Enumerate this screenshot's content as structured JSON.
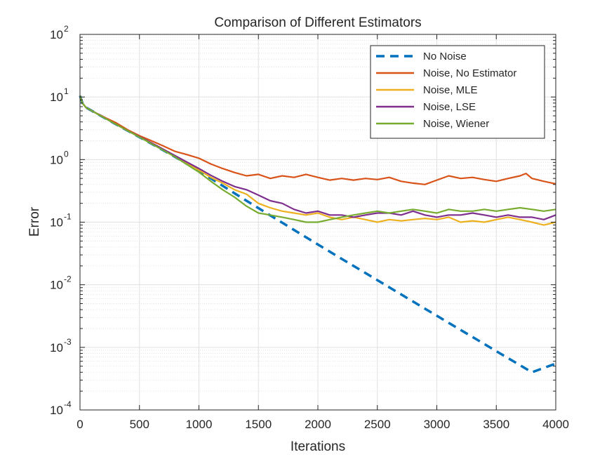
{
  "chart_data": {
    "type": "line",
    "title": "Comparison of Different Estimators",
    "xlabel": "Iterations",
    "ylabel": "Error",
    "xlim": [
      0,
      4000
    ],
    "ylim": [
      0.0001,
      100
    ],
    "yscale": "log",
    "grid": true,
    "minor_grid": true,
    "legend_position": "top-right",
    "x_ticks": [
      {
        "value": 0,
        "label": "0"
      },
      {
        "value": 500,
        "label": "500"
      },
      {
        "value": 1000,
        "label": "1000"
      },
      {
        "value": 1500,
        "label": "1500"
      },
      {
        "value": 2000,
        "label": "2000"
      },
      {
        "value": 2500,
        "label": "2500"
      },
      {
        "value": 3000,
        "label": "3000"
      },
      {
        "value": 3500,
        "label": "3500"
      },
      {
        "value": 4000,
        "label": "4000"
      }
    ],
    "y_ticks": [
      {
        "value": 0.0001,
        "base": "10",
        "exp": "-4"
      },
      {
        "value": 0.001,
        "base": "10",
        "exp": "-3"
      },
      {
        "value": 0.01,
        "base": "10",
        "exp": "-2"
      },
      {
        "value": 0.1,
        "base": "10",
        "exp": "-1"
      },
      {
        "value": 1,
        "base": "10",
        "exp": "0"
      },
      {
        "value": 10,
        "base": "10",
        "exp": "1"
      },
      {
        "value": 100,
        "base": "10",
        "exp": "2"
      }
    ],
    "series": [
      {
        "name": "No Noise",
        "color": "#0072BD",
        "style": "dashed",
        "x": [
          0,
          20,
          50,
          100,
          200,
          400,
          600,
          800,
          1000,
          1200,
          1400,
          1600,
          1800,
          2000,
          2200,
          2400,
          2600,
          2800,
          3000,
          3200,
          3400,
          3600,
          3800,
          4000
        ],
        "y": [
          10.5,
          8.0,
          6.8,
          6.0,
          4.7,
          2.9,
          1.8,
          1.1,
          0.66,
          0.38,
          0.22,
          0.128,
          0.075,
          0.044,
          0.026,
          0.0154,
          0.0091,
          0.0054,
          0.0032,
          0.0019,
          0.00113,
          0.00067,
          0.0004,
          0.00055
        ]
      },
      {
        "name": "Noise, No Estimator",
        "color": "#D95319",
        "style": "solid",
        "x": [
          0,
          20,
          50,
          100,
          200,
          300,
          400,
          500,
          600,
          700,
          800,
          900,
          1000,
          1100,
          1200,
          1300,
          1400,
          1500,
          1600,
          1700,
          1800,
          1900,
          2000,
          2100,
          2200,
          2300,
          2400,
          2500,
          2600,
          2700,
          2800,
          2900,
          3000,
          3100,
          3200,
          3300,
          3400,
          3500,
          3600,
          3700,
          3750,
          3800,
          3900,
          4000
        ],
        "y": [
          10.5,
          8.0,
          6.8,
          6.0,
          4.8,
          3.9,
          3.0,
          2.4,
          2.0,
          1.65,
          1.35,
          1.2,
          1.05,
          0.85,
          0.72,
          0.62,
          0.55,
          0.58,
          0.5,
          0.55,
          0.52,
          0.58,
          0.52,
          0.47,
          0.5,
          0.47,
          0.5,
          0.48,
          0.52,
          0.45,
          0.42,
          0.4,
          0.47,
          0.55,
          0.5,
          0.52,
          0.48,
          0.45,
          0.5,
          0.55,
          0.6,
          0.5,
          0.45,
          0.41
        ]
      },
      {
        "name": "Noise, MLE",
        "color": "#EDB120",
        "style": "solid",
        "x": [
          0,
          20,
          50,
          100,
          200,
          400,
          600,
          800,
          1000,
          1100,
          1200,
          1300,
          1400,
          1500,
          1600,
          1700,
          1800,
          1900,
          2000,
          2100,
          2200,
          2300,
          2400,
          2500,
          2600,
          2700,
          2800,
          2900,
          3000,
          3100,
          3200,
          3300,
          3400,
          3500,
          3600,
          3700,
          3800,
          3900,
          4000
        ],
        "y": [
          10.5,
          8.0,
          6.8,
          6.0,
          4.7,
          2.9,
          1.85,
          1.15,
          0.68,
          0.52,
          0.42,
          0.33,
          0.28,
          0.2,
          0.17,
          0.15,
          0.14,
          0.13,
          0.14,
          0.12,
          0.11,
          0.12,
          0.11,
          0.1,
          0.11,
          0.105,
          0.11,
          0.115,
          0.11,
          0.12,
          0.1,
          0.105,
          0.1,
          0.11,
          0.12,
          0.11,
          0.1,
          0.09,
          0.1
        ]
      },
      {
        "name": "Noise, LSE",
        "color": "#7E2F8E",
        "style": "solid",
        "x": [
          0,
          20,
          50,
          100,
          200,
          400,
          600,
          800,
          1000,
          1100,
          1200,
          1300,
          1400,
          1500,
          1600,
          1700,
          1800,
          1900,
          2000,
          2100,
          2200,
          2300,
          2400,
          2500,
          2600,
          2700,
          2800,
          2900,
          3000,
          3100,
          3200,
          3300,
          3400,
          3500,
          3600,
          3700,
          3800,
          3900,
          4000
        ],
        "y": [
          10.5,
          8.0,
          6.8,
          6.0,
          4.7,
          2.9,
          1.85,
          1.15,
          0.72,
          0.56,
          0.45,
          0.37,
          0.33,
          0.27,
          0.22,
          0.2,
          0.16,
          0.14,
          0.15,
          0.13,
          0.13,
          0.12,
          0.13,
          0.14,
          0.14,
          0.13,
          0.15,
          0.13,
          0.12,
          0.13,
          0.13,
          0.14,
          0.13,
          0.12,
          0.13,
          0.12,
          0.12,
          0.11,
          0.13
        ]
      },
      {
        "name": "Noise, Wiener",
        "color": "#77AC30",
        "style": "solid",
        "x": [
          0,
          20,
          50,
          100,
          200,
          400,
          600,
          800,
          1000,
          1100,
          1200,
          1300,
          1400,
          1500,
          1600,
          1700,
          1800,
          1900,
          2000,
          2100,
          2200,
          2300,
          2400,
          2500,
          2600,
          2700,
          2800,
          2900,
          3000,
          3100,
          3200,
          3300,
          3400,
          3500,
          3600,
          3700,
          3800,
          3900,
          4000
        ],
        "y": [
          10.5,
          8.0,
          6.8,
          6.0,
          4.7,
          2.9,
          1.8,
          1.1,
          0.63,
          0.45,
          0.33,
          0.25,
          0.18,
          0.14,
          0.13,
          0.12,
          0.11,
          0.1,
          0.1,
          0.11,
          0.12,
          0.13,
          0.14,
          0.15,
          0.14,
          0.15,
          0.16,
          0.15,
          0.14,
          0.16,
          0.15,
          0.15,
          0.16,
          0.15,
          0.16,
          0.17,
          0.16,
          0.15,
          0.16
        ]
      }
    ]
  }
}
